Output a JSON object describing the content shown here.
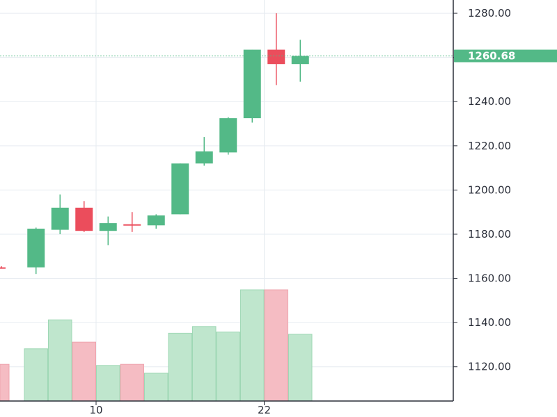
{
  "chart_data": {
    "type": "candlestick",
    "x_ticks": [
      {
        "label": "10",
        "index": 3.5
      },
      {
        "label": "22",
        "index": 10.5
      }
    ],
    "y_ticks": [
      "1120.00",
      "1140.00",
      "1160.00",
      "1180.00",
      "1200.00",
      "1220.00",
      "1240.00",
      "1260.00",
      "1280.00"
    ],
    "y_tick_values": [
      1120,
      1140,
      1160,
      1180,
      1200,
      1220,
      1240,
      1260,
      1280
    ],
    "ylim": [
      1104.5,
      1286
    ],
    "last_price": {
      "value": 1260.68,
      "label": "1260.68"
    },
    "volume_scale_max": 1,
    "candles": [
      {
        "open": 1165,
        "high": 1165.5,
        "low": 1164.5,
        "close": 1165,
        "dir": "down",
        "volume": 0.33,
        "partial": true
      },
      {
        "open": 1165,
        "high": 1183,
        "low": 1162,
        "close": 1182.5,
        "dir": "up",
        "volume": 0.47
      },
      {
        "open": 1182,
        "high": 1198,
        "low": 1180,
        "close": 1192,
        "dir": "up",
        "volume": 0.73
      },
      {
        "open": 1192,
        "high": 1195,
        "low": 1181,
        "close": 1181.5,
        "dir": "down",
        "volume": 0.53
      },
      {
        "open": 1181.5,
        "high": 1188,
        "low": 1175,
        "close": 1185,
        "dir": "up",
        "volume": 0.32
      },
      {
        "open": 1184,
        "high": 1190,
        "low": 1181,
        "close": 1184.5,
        "dir": "down",
        "volume": 0.33
      },
      {
        "open": 1184,
        "high": 1189,
        "low": 1182.5,
        "close": 1188.5,
        "dir": "up",
        "volume": 0.25
      },
      {
        "open": 1189,
        "high": 1212,
        "low": 1189,
        "close": 1212,
        "dir": "up",
        "volume": 0.61
      },
      {
        "open": 1212,
        "high": 1224,
        "low": 1211,
        "close": 1217.5,
        "dir": "up",
        "volume": 0.67
      },
      {
        "open": 1217,
        "high": 1233,
        "low": 1216,
        "close": 1232.5,
        "dir": "up",
        "volume": 0.62
      },
      {
        "open": 1232.5,
        "high": 1263.5,
        "low": 1230.5,
        "close": 1263.5,
        "dir": "up",
        "volume": 1.0
      },
      {
        "open": 1263.5,
        "high": 1280,
        "low": 1247.5,
        "close": 1257,
        "dir": "down",
        "volume": 1.0
      },
      {
        "open": 1257,
        "high": 1268,
        "low": 1249,
        "close": 1260.68,
        "dir": "up",
        "volume": 0.6
      }
    ],
    "colors": {
      "up": "#53b987",
      "down": "#eb4d5c",
      "up_volume": "#bfe6cd",
      "down_volume": "#f5bcc3",
      "grid": "#e6ebf0",
      "price_line": "#53b987",
      "axis": "#2a2e39"
    }
  }
}
